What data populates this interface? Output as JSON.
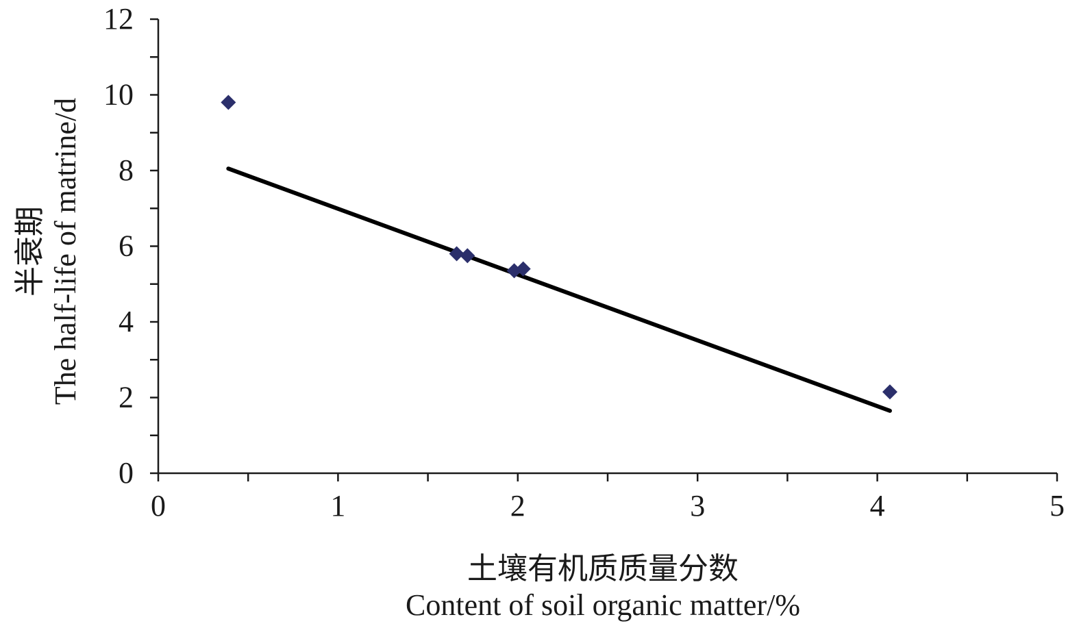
{
  "chart_data": {
    "type": "scatter",
    "title": "",
    "xlabel_cn": "土壤有机质质量分数",
    "xlabel_en": "Content of soil organic matter/%",
    "ylabel_cn": "半衰期",
    "ylabel_en": "The half-life of matrine/d",
    "xlim": [
      0,
      5
    ],
    "ylim": [
      0,
      12
    ],
    "x_ticks": [
      "0",
      "1",
      "2",
      "3",
      "4",
      "5"
    ],
    "y_ticks": [
      "0",
      "2",
      "4",
      "6",
      "8",
      "10",
      "12"
    ],
    "x_minor_step": 0.5,
    "y_minor_step": 1,
    "grid": false,
    "legend": "none",
    "marker": "diamond",
    "series": [
      {
        "points": [
          {
            "x": 0.39,
            "y": 9.8
          },
          {
            "x": 1.66,
            "y": 5.8
          },
          {
            "x": 1.72,
            "y": 5.75
          },
          {
            "x": 1.98,
            "y": 5.35
          },
          {
            "x": 2.03,
            "y": 5.4
          },
          {
            "x": 4.07,
            "y": 2.15
          }
        ]
      }
    ],
    "trendline": {
      "x": [
        0.39,
        4.07
      ],
      "y": [
        8.05,
        1.65
      ]
    },
    "colors": {
      "marker": "#2b2f6b",
      "trendline": "#000000",
      "axis": "#1a1a1a"
    }
  }
}
